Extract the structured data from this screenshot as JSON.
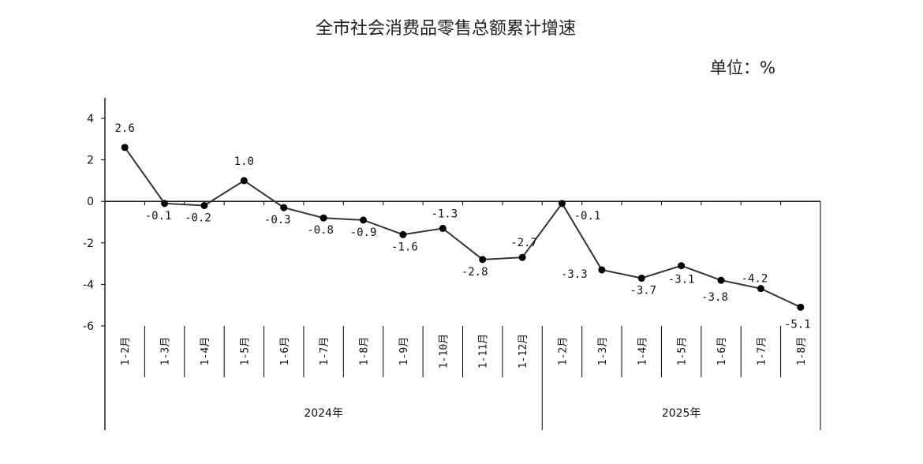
{
  "chart_data": {
    "type": "line",
    "title": "全市社会消费品零售总额累计增速",
    "unit_label": "单位：%",
    "ylim": [
      -6,
      4
    ],
    "yticks": [
      4,
      2,
      0,
      -2,
      -4,
      -6
    ],
    "categories": [
      "1-2月",
      "1-3月",
      "1-4月",
      "1-5月",
      "1-6月",
      "1-7月",
      "1-8月",
      "1-9月",
      "1-10月",
      "1-11月",
      "1-12月",
      "1-2月",
      "1-3月",
      "1-4月",
      "1-5月",
      "1-6月",
      "1-7月",
      "1-8月"
    ],
    "groups": [
      {
        "label": "2024年",
        "start": 0,
        "end": 10
      },
      {
        "label": "2025年",
        "start": 11,
        "end": 17
      }
    ],
    "series": [
      {
        "values": [
          2.6,
          -0.1,
          -0.2,
          1.0,
          -0.3,
          -0.8,
          -0.9,
          -1.6,
          -1.3,
          -2.8,
          -2.7,
          -0.1,
          -3.3,
          -3.7,
          -3.1,
          -3.8,
          -4.2,
          -5.1
        ],
        "labels": [
          "2.6",
          "-0.1",
          "-0.2",
          "1.0",
          "-0.3",
          "-0.8",
          "-0.9",
          "-1.6",
          "-1.3",
          "-2.8",
          "-2.7",
          "-0.1",
          "-3.3",
          "-3.7",
          "-3.1",
          "-3.8",
          "-4.2",
          "-5.1"
        ]
      }
    ],
    "grid": false,
    "line_color": "#333333",
    "marker_color": "#000000"
  }
}
